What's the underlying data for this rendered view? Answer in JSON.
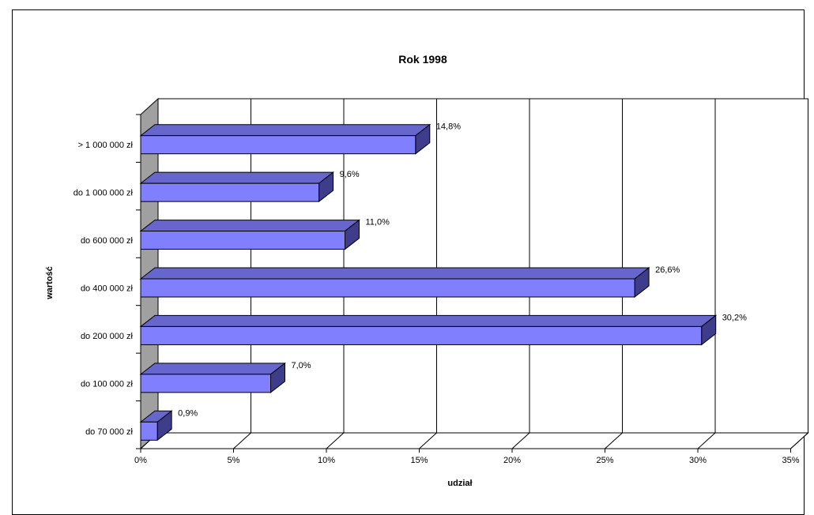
{
  "chart_data": {
    "type": "bar",
    "orientation": "horizontal",
    "three_d": true,
    "title": "Rok 1998",
    "xlabel": "udział",
    "ylabel": "wartość",
    "categories": [
      "> 1 000 000 zł",
      "do 1 000 000 zł",
      "do 600 000 zł",
      "do 400 000 zł",
      "do 200 000 zł",
      "do 100 000 zł",
      "do 70 000 zł"
    ],
    "values": [
      14.8,
      9.6,
      11.0,
      26.6,
      30.2,
      7.0,
      0.9
    ],
    "data_labels": [
      "14,8%",
      "9,6%",
      "11,0%",
      "26,6%",
      "30,2%",
      "7,0%",
      "0,9%"
    ],
    "x_ticks": [
      "0%",
      "5%",
      "10%",
      "15%",
      "20%",
      "25%",
      "30%",
      "35%"
    ],
    "xlim": [
      0,
      35
    ],
    "grid": true,
    "legend": "none",
    "colors": {
      "bar_front": "#8080ff",
      "bar_top": "#6666cc",
      "bar_side": "#3d3d8c",
      "wall": "#a0a0a0"
    }
  }
}
